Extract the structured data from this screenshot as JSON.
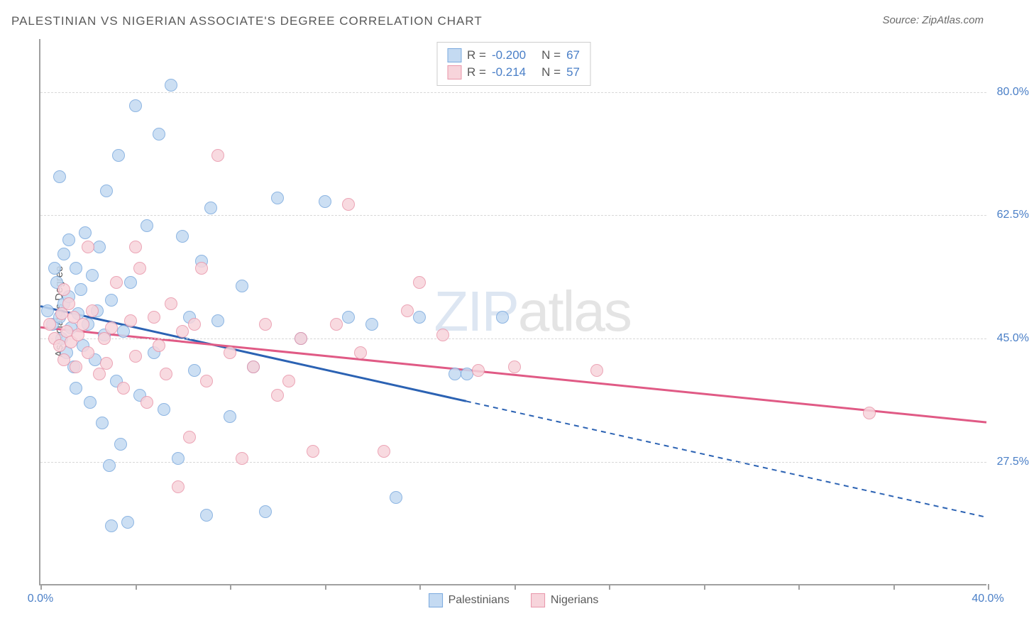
{
  "title": "PALESTINIAN VS NIGERIAN ASSOCIATE'S DEGREE CORRELATION CHART",
  "source": "Source: ZipAtlas.com",
  "watermark": {
    "part1": "ZIP",
    "part2": "atlas"
  },
  "chart": {
    "type": "scatter",
    "ylabel": "Associate's Degree",
    "xlim": [
      0,
      40
    ],
    "ylim": [
      10,
      87.5
    ],
    "xtick_positions": [
      0,
      4,
      8,
      12,
      16,
      20,
      24,
      28,
      32,
      36,
      40
    ],
    "xtick_labels": {
      "0": "0.0%",
      "40": "40.0%"
    },
    "ytick_positions": [
      27.5,
      45.0,
      62.5,
      80.0
    ],
    "ytick_labels": [
      "27.5%",
      "45.0%",
      "62.5%",
      "80.0%"
    ],
    "grid_color": "#d8d8d8",
    "axis_color": "#a0a0a0",
    "background_color": "#ffffff",
    "point_radius": 9,
    "series": [
      {
        "name": "Palestinians",
        "fill": "#c4daf2",
        "stroke": "#7aa9de",
        "R": "-0.200",
        "N": "67",
        "regression": {
          "solid": {
            "x1": 0,
            "y1": 49.5,
            "x2": 18,
            "y2": 36.0
          },
          "dashed": {
            "x1": 18,
            "y1": 36.0,
            "x2": 40,
            "y2": 19.5
          },
          "color": "#2b62b3",
          "width": 3
        },
        "points": [
          [
            0.3,
            49
          ],
          [
            0.5,
            47
          ],
          [
            0.6,
            55
          ],
          [
            0.7,
            53
          ],
          [
            0.8,
            48
          ],
          [
            0.9,
            45
          ],
          [
            1.0,
            50
          ],
          [
            1.0,
            57
          ],
          [
            1.1,
            43
          ],
          [
            1.2,
            51
          ],
          [
            1.2,
            59
          ],
          [
            1.3,
            46.5
          ],
          [
            1.4,
            41
          ],
          [
            1.5,
            55
          ],
          [
            1.5,
            38
          ],
          [
            1.6,
            48.5
          ],
          [
            1.7,
            52
          ],
          [
            1.8,
            44
          ],
          [
            1.9,
            60
          ],
          [
            2.0,
            47
          ],
          [
            2.1,
            36
          ],
          [
            2.2,
            54
          ],
          [
            2.3,
            42
          ],
          [
            2.4,
            49
          ],
          [
            2.5,
            58
          ],
          [
            2.6,
            33
          ],
          [
            2.7,
            45.5
          ],
          [
            2.8,
            66
          ],
          [
            2.9,
            27
          ],
          [
            3.0,
            50.5
          ],
          [
            3.2,
            39
          ],
          [
            3.3,
            71
          ],
          [
            3.4,
            30
          ],
          [
            3.5,
            46
          ],
          [
            3.7,
            19
          ],
          [
            3.8,
            53
          ],
          [
            4.0,
            78
          ],
          [
            4.2,
            37
          ],
          [
            4.5,
            61
          ],
          [
            4.8,
            43
          ],
          [
            5.0,
            74
          ],
          [
            5.2,
            35
          ],
          [
            5.5,
            81
          ],
          [
            5.8,
            28
          ],
          [
            6.0,
            59.5
          ],
          [
            6.3,
            48
          ],
          [
            6.5,
            40.5
          ],
          [
            6.8,
            56
          ],
          [
            7.0,
            20
          ],
          [
            7.2,
            63.5
          ],
          [
            7.5,
            47.5
          ],
          [
            8.0,
            34
          ],
          [
            8.5,
            52.5
          ],
          [
            9.0,
            41
          ],
          [
            9.5,
            20.5
          ],
          [
            10.0,
            65
          ],
          [
            11.0,
            45
          ],
          [
            12.0,
            64.5
          ],
          [
            13.0,
            48
          ],
          [
            14.0,
            47
          ],
          [
            15.0,
            22.5
          ],
          [
            16.0,
            48
          ],
          [
            17.5,
            40
          ],
          [
            18.0,
            40
          ],
          [
            19.5,
            48
          ],
          [
            0.8,
            68
          ],
          [
            3.0,
            18.5
          ]
        ]
      },
      {
        "name": "Nigerians",
        "fill": "#f7d4db",
        "stroke": "#e996aa",
        "R": "-0.214",
        "N": "57",
        "regression": {
          "solid": {
            "x1": 0,
            "y1": 46.5,
            "x2": 40,
            "y2": 33.0
          },
          "color": "#e05a85",
          "width": 3
        },
        "points": [
          [
            0.4,
            47
          ],
          [
            0.6,
            45
          ],
          [
            0.8,
            44
          ],
          [
            0.9,
            48.5
          ],
          [
            1.0,
            42
          ],
          [
            1.1,
            46
          ],
          [
            1.2,
            50
          ],
          [
            1.3,
            44.5
          ],
          [
            1.4,
            48
          ],
          [
            1.5,
            41
          ],
          [
            1.6,
            45.5
          ],
          [
            1.8,
            47
          ],
          [
            2.0,
            43
          ],
          [
            2.2,
            49
          ],
          [
            2.5,
            40
          ],
          [
            2.7,
            45
          ],
          [
            2.8,
            41.5
          ],
          [
            3.0,
            46.5
          ],
          [
            3.2,
            53
          ],
          [
            3.5,
            38
          ],
          [
            3.8,
            47.5
          ],
          [
            4.0,
            42.5
          ],
          [
            4.2,
            55
          ],
          [
            4.5,
            36
          ],
          [
            4.8,
            48
          ],
          [
            5.0,
            44
          ],
          [
            5.3,
            40
          ],
          [
            5.5,
            50
          ],
          [
            5.8,
            24
          ],
          [
            6.0,
            46
          ],
          [
            6.3,
            31
          ],
          [
            6.5,
            47
          ],
          [
            6.8,
            55
          ],
          [
            7.0,
            39
          ],
          [
            7.5,
            71
          ],
          [
            8.0,
            43
          ],
          [
            8.5,
            28
          ],
          [
            9.0,
            41
          ],
          [
            9.5,
            47
          ],
          [
            10.0,
            37
          ],
          [
            10.5,
            39
          ],
          [
            11.0,
            45
          ],
          [
            11.5,
            29
          ],
          [
            12.5,
            47
          ],
          [
            13.0,
            64
          ],
          [
            13.5,
            43
          ],
          [
            14.5,
            29
          ],
          [
            15.5,
            49
          ],
          [
            16.0,
            53
          ],
          [
            17.0,
            45.5
          ],
          [
            18.5,
            40.5
          ],
          [
            20.0,
            41
          ],
          [
            23.5,
            40.5
          ],
          [
            35.0,
            34.5
          ],
          [
            1.0,
            52
          ],
          [
            2.0,
            58
          ],
          [
            4.0,
            58
          ]
        ]
      }
    ],
    "legend_bottom": [
      {
        "label": "Palestinians",
        "fill": "#c4daf2",
        "stroke": "#7aa9de"
      },
      {
        "label": "Nigerians",
        "fill": "#f7d4db",
        "stroke": "#e996aa"
      }
    ]
  }
}
